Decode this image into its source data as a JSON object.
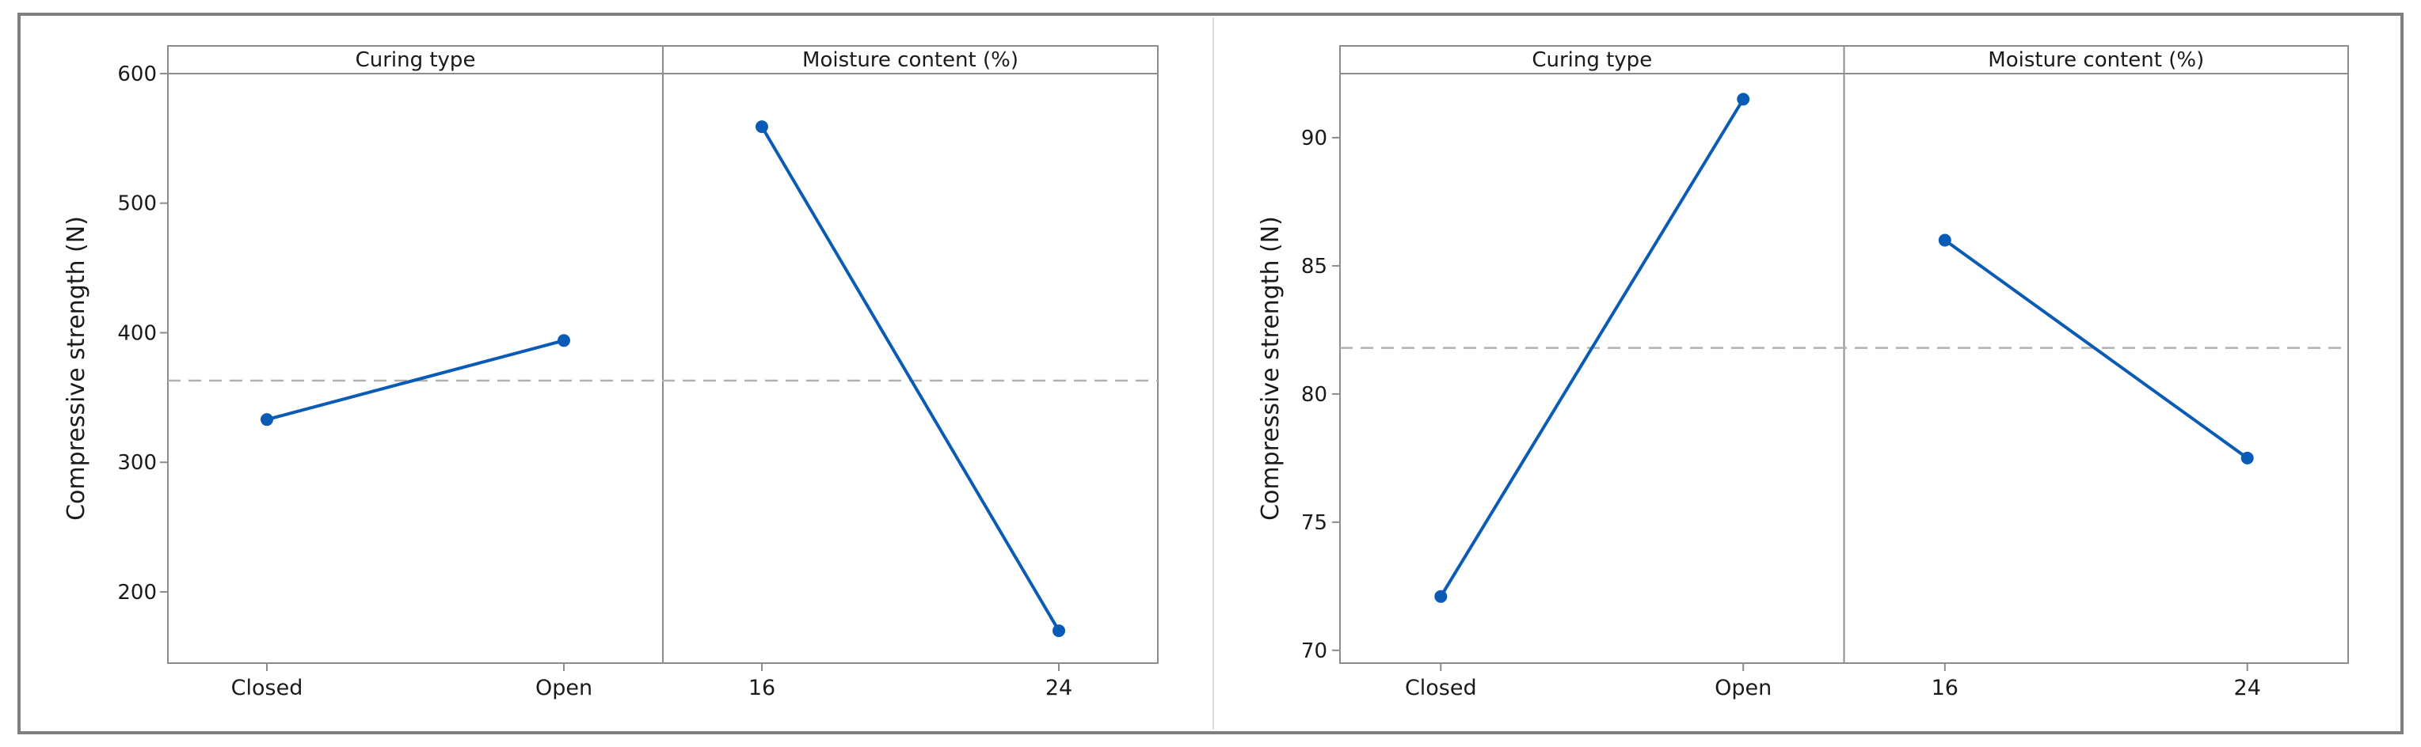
{
  "chart_data": [
    {
      "type": "line",
      "ylabel": "Compressive strength (N)",
      "ylim": [
        145,
        600
      ],
      "yticks": [
        200,
        300,
        400,
        500,
        600
      ],
      "mean_line": 363,
      "grid": false,
      "colors": {
        "line": "#0a5bb5",
        "mean": "#b0b0b0",
        "axis": "#8c8c8c"
      },
      "panels": [
        {
          "title": "Curing type",
          "categories": [
            "Closed",
            "Open"
          ],
          "values": [
            333,
            394
          ]
        },
        {
          "title": "Moisture content (%)",
          "categories": [
            "16",
            "24"
          ],
          "values": [
            559,
            170
          ]
        }
      ]
    },
    {
      "type": "line",
      "ylabel": "Compressive strength (N)",
      "ylim": [
        69.5,
        92.5
      ],
      "yticks": [
        70,
        75,
        80,
        85,
        90
      ],
      "mean_line": 81.8,
      "grid": false,
      "colors": {
        "line": "#0a5bb5",
        "mean": "#b0b0b0",
        "axis": "#8c8c8c"
      },
      "panels": [
        {
          "title": "Curing type",
          "categories": [
            "Closed",
            "Open"
          ],
          "values": [
            72.1,
            91.5
          ]
        },
        {
          "title": "Moisture content (%)",
          "categories": [
            "16",
            "24"
          ],
          "values": [
            86.0,
            77.5
          ]
        }
      ]
    }
  ]
}
